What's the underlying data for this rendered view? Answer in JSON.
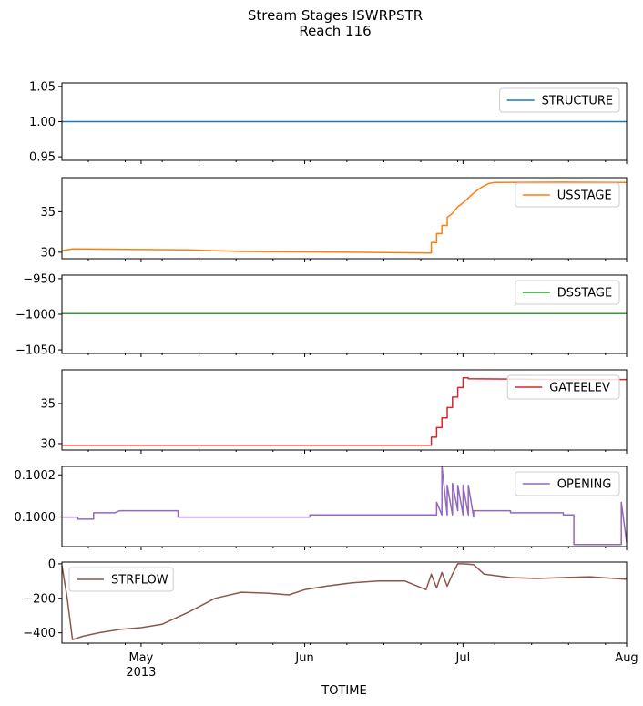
{
  "figure": {
    "title_line1": "Stream Stages ISWRPSTR",
    "title_line2": "Reach 116",
    "xlabel": "TOTIME"
  },
  "x_axis": {
    "range": [
      "2013-04-16",
      "2013-08-01"
    ],
    "major_ticks": [
      {
        "date": "2013-05-01",
        "label": "May",
        "sublabel": "2013"
      },
      {
        "date": "2013-06-01",
        "label": "Jun",
        "sublabel": ""
      },
      {
        "date": "2013-07-01",
        "label": "Jul",
        "sublabel": ""
      },
      {
        "date": "2013-08-01",
        "label": "Aug",
        "sublabel": ""
      }
    ],
    "minor_ticks": [
      "2013-04-21",
      "2013-04-28",
      "2013-05-05",
      "2013-05-12",
      "2013-05-19",
      "2013-05-26",
      "2013-06-02",
      "2013-06-09",
      "2013-06-16",
      "2013-06-23",
      "2013-06-30",
      "2013-07-07",
      "2013-07-14",
      "2013-07-21",
      "2013-07-28"
    ]
  },
  "chart_data": [
    {
      "type": "line",
      "name": "STRUCTURE",
      "color": "#1f77b4",
      "ylim": [
        0.945,
        1.055
      ],
      "yticks": [
        {
          "v": 0.95,
          "label": "0.95"
        },
        {
          "v": 1.0,
          "label": "1.00"
        },
        {
          "v": 1.05,
          "label": "1.05"
        }
      ],
      "legend_loc": "upper-right",
      "x": [
        "2013-04-16",
        "2013-08-01"
      ],
      "y": [
        1.0,
        1.0
      ]
    },
    {
      "type": "line",
      "name": "USSTAGE",
      "color": "#ff7f0e",
      "ylim": [
        29.2,
        39.2
      ],
      "yticks": [
        {
          "v": 30,
          "label": "30"
        },
        {
          "v": 35,
          "label": "35"
        }
      ],
      "legend_loc": "upper-right",
      "x": [
        "2013-04-16",
        "2013-04-18",
        "2013-05-10",
        "2013-05-20",
        "2013-06-10",
        "2013-06-25",
        "2013-06-25",
        "2013-06-26",
        "2013-06-26",
        "2013-06-27",
        "2013-06-27",
        "2013-06-28",
        "2013-06-28",
        "2013-06-29",
        "2013-06-30",
        "2013-07-01",
        "2013-07-02",
        "2013-07-03",
        "2013-07-04",
        "2013-07-05",
        "2013-07-06",
        "2013-07-07",
        "2013-07-20",
        "2013-08-01"
      ],
      "y": [
        30.2,
        30.4,
        30.3,
        30.1,
        30.0,
        29.9,
        31.2,
        31.2,
        32.3,
        32.3,
        33.3,
        33.3,
        34.3,
        34.8,
        35.6,
        36.1,
        36.7,
        37.3,
        37.8,
        38.2,
        38.5,
        38.6,
        38.65,
        38.6
      ]
    },
    {
      "type": "line",
      "name": "DSSTAGE",
      "color": "#2ca02c",
      "ylim": [
        -1055,
        -945
      ],
      "yticks": [
        {
          "v": -1050,
          "label": "−1050"
        },
        {
          "v": -1000,
          "label": "−1000"
        },
        {
          "v": -950,
          "label": "−950"
        }
      ],
      "legend_loc": "upper-right",
      "x": [
        "2013-04-16",
        "2013-08-01"
      ],
      "y": [
        -999,
        -999
      ]
    },
    {
      "type": "line",
      "name": "GATEELEV",
      "color": "#d62728",
      "ylim": [
        29.2,
        39.2
      ],
      "yticks": [
        {
          "v": 30,
          "label": "30"
        },
        {
          "v": 35,
          "label": "35"
        }
      ],
      "legend_loc": "upper-right",
      "x": [
        "2013-04-16",
        "2013-06-25",
        "2013-06-25",
        "2013-06-26",
        "2013-06-26",
        "2013-06-27",
        "2013-06-27",
        "2013-06-28",
        "2013-06-28",
        "2013-06-29",
        "2013-06-29",
        "2013-06-30",
        "2013-06-30",
        "2013-07-01",
        "2013-07-01",
        "2013-07-02",
        "2013-07-02",
        "2013-07-20",
        "2013-08-01"
      ],
      "y": [
        29.8,
        29.8,
        30.8,
        30.8,
        32.0,
        32.0,
        33.2,
        33.2,
        34.5,
        34.5,
        35.8,
        35.8,
        37.0,
        37.0,
        38.2,
        38.2,
        38.1,
        38.0,
        38.0
      ]
    },
    {
      "type": "line",
      "name": "OPENING",
      "color": "#9467bd",
      "ylim": [
        0.09986,
        0.10024
      ],
      "yticks": [
        {
          "v": 0.1,
          "label": "0.1000"
        },
        {
          "v": 0.1002,
          "label": "0.1002"
        }
      ],
      "legend_loc": "upper-right",
      "x": [
        "2013-04-16",
        "2013-04-19",
        "2013-04-19",
        "2013-04-22",
        "2013-04-22",
        "2013-04-26",
        "2013-04-27",
        "2013-04-28",
        "2013-04-28",
        "2013-05-08",
        "2013-05-08",
        "2013-05-31",
        "2013-05-31",
        "2013-06-02",
        "2013-06-02",
        "2013-06-09",
        "2013-06-09",
        "2013-06-26",
        "2013-06-26",
        "2013-06-27",
        "2013-06-27",
        "2013-06-28",
        "2013-06-28",
        "2013-06-29",
        "2013-06-29",
        "2013-06-30",
        "2013-06-30",
        "2013-07-01",
        "2013-07-01",
        "2013-07-02",
        "2013-07-02",
        "2013-07-03",
        "2013-07-03",
        "2013-07-10",
        "2013-07-10",
        "2013-07-20",
        "2013-07-20",
        "2013-07-22",
        "2013-07-22",
        "2013-07-31",
        "2013-07-31",
        "2013-08-01"
      ],
      "y": [
        0.1,
        0.1,
        0.09999,
        0.09999,
        0.10002,
        0.10002,
        0.10003,
        0.10003,
        0.10003,
        0.10003,
        0.1,
        0.1,
        0.1,
        0.1,
        0.10001,
        0.10001,
        0.10001,
        0.10001,
        0.10007,
        0.10001,
        0.10024,
        0.10001,
        0.10015,
        0.10001,
        0.10016,
        0.10003,
        0.10015,
        0.10001,
        0.10015,
        0.10001,
        0.10015,
        0.1,
        0.10003,
        0.10003,
        0.10002,
        0.10002,
        0.10001,
        0.10001,
        0.09987,
        0.09987,
        0.10007,
        0.09988
      ]
    },
    {
      "type": "line",
      "name": "STRFLOW",
      "color": "#8c564b",
      "ylim": [
        -460,
        10
      ],
      "yticks": [
        {
          "v": -400,
          "label": "−400"
        },
        {
          "v": -200,
          "label": "−200"
        },
        {
          "v": 0,
          "label": "0"
        }
      ],
      "legend_loc": "upper-left",
      "x": [
        "2013-04-16",
        "2013-04-17",
        "2013-04-18",
        "2013-04-20",
        "2013-04-23",
        "2013-04-27",
        "2013-05-01",
        "2013-05-05",
        "2013-05-10",
        "2013-05-15",
        "2013-05-20",
        "2013-05-25",
        "2013-05-29",
        "2013-06-01",
        "2013-06-05",
        "2013-06-10",
        "2013-06-15",
        "2013-06-20",
        "2013-06-24",
        "2013-06-25",
        "2013-06-26",
        "2013-06-27",
        "2013-06-28",
        "2013-06-29",
        "2013-06-30",
        "2013-07-01",
        "2013-07-03",
        "2013-07-05",
        "2013-07-10",
        "2013-07-15",
        "2013-07-20",
        "2013-07-25",
        "2013-08-01"
      ],
      "y": [
        -10,
        -200,
        -440,
        -420,
        -400,
        -380,
        -370,
        -350,
        -280,
        -200,
        -165,
        -170,
        -180,
        -150,
        -130,
        -110,
        -100,
        -100,
        -150,
        -60,
        -140,
        -50,
        -130,
        -60,
        0,
        0,
        -5,
        -60,
        -80,
        -85,
        -80,
        -75,
        -90
      ]
    }
  ]
}
